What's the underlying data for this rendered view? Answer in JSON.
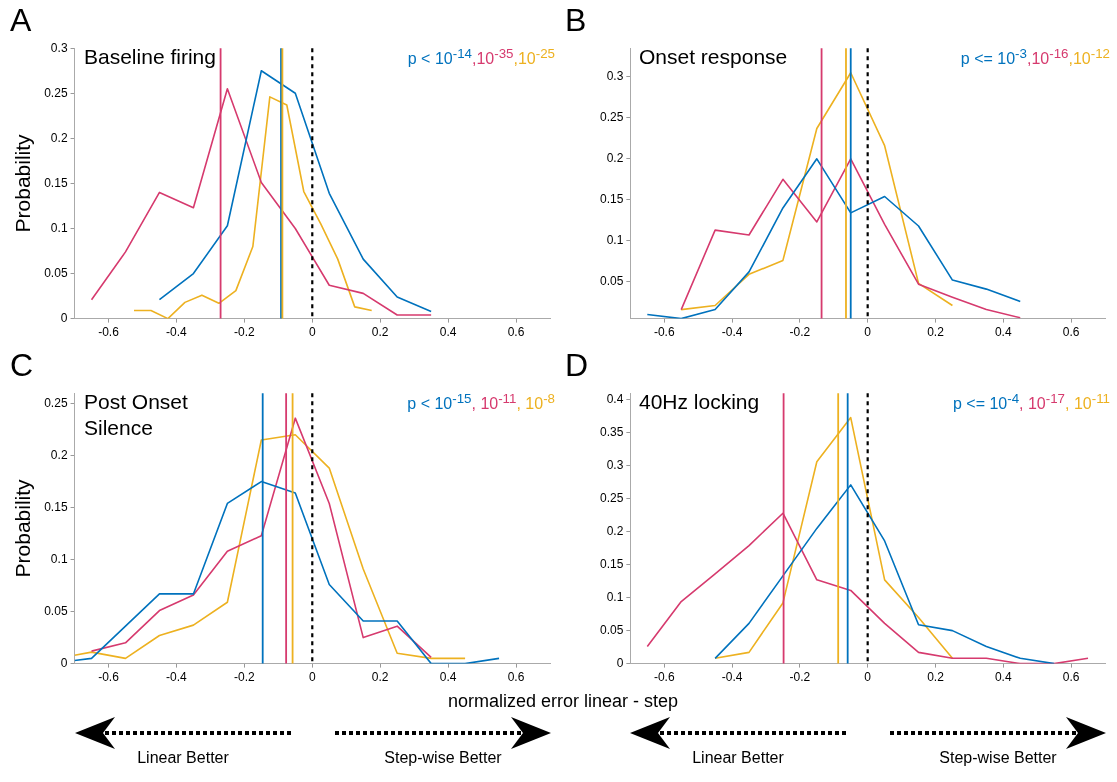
{
  "chart_data": [
    {
      "type": "line",
      "title": "A",
      "subtitle": "Baseline firing",
      "ylabel": "Probability",
      "xlim": [
        -0.7,
        0.7
      ],
      "xticks": [
        -0.6,
        -0.4,
        -0.2,
        0,
        0.2,
        0.4,
        0.6
      ],
      "ylim": [
        0,
        0.3
      ],
      "yticks": [
        0,
        0.05,
        0.1,
        0.15,
        0.2,
        0.25,
        0.3
      ],
      "marker": "none",
      "annotations": [
        "p < 10$^{-14}$",
        ",10$^{-35}$",
        ",10$^{-25}$"
      ],
      "ref_lines": [
        {
          "axis": "x",
          "value": -0.27,
          "color": "#d63a6e"
        },
        {
          "axis": "x",
          "value": -0.092,
          "color": "#0072bd"
        },
        {
          "axis": "x",
          "value": -0.088,
          "color": "#edb120"
        },
        {
          "axis": "x",
          "value": 0,
          "color": "#000000",
          "line_style": "dashed"
        }
      ],
      "series": [
        {
          "color": "#0072bd",
          "x": [
            -0.45,
            -0.35,
            -0.25,
            -0.15,
            -0.05,
            0.05,
            0.15,
            0.25,
            0.35
          ],
          "values": [
            0.021,
            0.05,
            0.103,
            0.275,
            0.25,
            0.139,
            0.066,
            0.024,
            0.008
          ]
        },
        {
          "color": "#d63a6e",
          "x": [
            -0.65,
            -0.55,
            -0.45,
            -0.35,
            -0.25,
            -0.15,
            -0.05,
            0.05,
            0.15,
            0.25,
            0.35
          ],
          "values": [
            0.021,
            0.074,
            0.14,
            0.123,
            0.255,
            0.151,
            0.1,
            0.037,
            0.028,
            0.004,
            0.004
          ]
        },
        {
          "color": "#edb120",
          "x": [
            -0.525,
            -0.475,
            -0.425,
            -0.375,
            -0.325,
            -0.275,
            -0.225,
            -0.175,
            -0.125,
            -0.075,
            -0.025,
            0.025,
            0.075,
            0.125,
            0.175
          ],
          "values": [
            0.009,
            0.009,
            0,
            0.018,
            0.026,
            0.017,
            0.031,
            0.08,
            0.246,
            0.237,
            0.141,
            0.105,
            0.066,
            0.013,
            0.009
          ]
        }
      ]
    },
    {
      "type": "line",
      "title": "B",
      "subtitle": "Onset response",
      "xlim": [
        -0.7,
        0.7
      ],
      "xticks": [
        -0.6,
        -0.4,
        -0.2,
        0,
        0.2,
        0.4,
        0.6
      ],
      "ylim": [
        0.005,
        0.335
      ],
      "yticks": [
        0.05,
        0.1,
        0.15,
        0.2,
        0.25,
        0.3
      ],
      "marker": "none",
      "annotations": [
        "p <= 10$^{-3}$",
        ",10$^{-16}$",
        ",10$^{-12}$"
      ],
      "ref_lines": [
        {
          "axis": "x",
          "value": -0.136,
          "color": "#d63a6e"
        },
        {
          "axis": "x",
          "value": -0.064,
          "color": "#edb120"
        },
        {
          "axis": "x",
          "value": -0.05,
          "color": "#0072bd"
        },
        {
          "axis": "x",
          "value": 0,
          "color": "#000000",
          "line_style": "dashed"
        }
      ],
      "series": [
        {
          "color": "#0072bd",
          "x": [
            -0.65,
            -0.55,
            -0.45,
            -0.35,
            -0.25,
            -0.15,
            -0.05,
            0.05,
            0.15,
            0.25,
            0.35,
            0.45
          ],
          "values": [
            0.01,
            0.005,
            0.016,
            0.062,
            0.14,
            0.2,
            0.134,
            0.154,
            0.118,
            0.052,
            0.041,
            0.026
          ]
        },
        {
          "color": "#d63a6e",
          "x": [
            -0.55,
            -0.45,
            -0.35,
            -0.25,
            -0.15,
            -0.05,
            0.05,
            0.15,
            0.25,
            0.35,
            0.45
          ],
          "values": [
            0.016,
            0.113,
            0.107,
            0.175,
            0.123,
            0.2,
            0.12,
            0.047,
            0.031,
            0.016,
            0.006
          ]
        },
        {
          "color": "#edb120",
          "x": [
            -0.55,
            -0.45,
            -0.35,
            -0.25,
            -0.15,
            -0.05,
            0.05,
            0.15,
            0.25
          ],
          "values": [
            0.016,
            0.021,
            0.059,
            0.076,
            0.237,
            0.305,
            0.216,
            0.048,
            0.021
          ]
        }
      ]
    },
    {
      "type": "line",
      "title": "C",
      "subtitle": "Post Onset Silence",
      "ylabel": "Probability",
      "xlabel": "normalized error linear - step",
      "xlim": [
        -0.7,
        0.7
      ],
      "xticks": [
        -0.6,
        -0.4,
        -0.2,
        0,
        0.2,
        0.4,
        0.6
      ],
      "ylim": [
        0,
        0.26
      ],
      "yticks": [
        0,
        0.05,
        0.1,
        0.15,
        0.2,
        0.25
      ],
      "marker": "none",
      "annotations": [
        "p < 10$^{-15}$",
        ", 10$^{-11}$",
        ", 10$^{-8}$",
        "Linear Better",
        "Step-wise Better"
      ],
      "ref_lines": [
        {
          "axis": "x",
          "value": -0.146,
          "color": "#0072bd"
        },
        {
          "axis": "x",
          "value": -0.077,
          "color": "#d63a6e"
        },
        {
          "axis": "x",
          "value": -0.058,
          "color": "#edb120"
        },
        {
          "axis": "x",
          "value": 0,
          "color": "#000000",
          "line_style": "dashed"
        }
      ],
      "series": [
        {
          "color": "#0072bd",
          "x": [
            -0.7,
            -0.65,
            -0.55,
            -0.45,
            -0.35,
            -0.25,
            -0.15,
            -0.05,
            0.05,
            0.15,
            0.25,
            0.35,
            0.45,
            0.55
          ],
          "values": [
            0.003,
            0.005,
            0.036,
            0.067,
            0.067,
            0.154,
            0.175,
            0.164,
            0.076,
            0.041,
            0.041,
            0,
            0,
            0.005
          ]
        },
        {
          "color": "#d63a6e",
          "x": [
            -0.65,
            -0.55,
            -0.45,
            -0.35,
            -0.25,
            -0.15,
            -0.05,
            0.05,
            0.15,
            0.25,
            0.35
          ],
          "values": [
            0.012,
            0.02,
            0.051,
            0.066,
            0.108,
            0.123,
            0.236,
            0.154,
            0.025,
            0.036,
            0.006
          ]
        },
        {
          "color": "#edb120",
          "x": [
            -0.7,
            -0.65,
            -0.55,
            -0.45,
            -0.35,
            -0.25,
            -0.15,
            -0.05,
            0.05,
            0.15,
            0.25,
            0.35,
            0.45
          ],
          "values": [
            0.008,
            0.011,
            0.005,
            0.027,
            0.037,
            0.059,
            0.215,
            0.22,
            0.188,
            0.091,
            0.01,
            0.005,
            0.005
          ]
        }
      ]
    },
    {
      "type": "line",
      "title": "D",
      "subtitle": "40Hz locking",
      "xlim": [
        -0.7,
        0.7
      ],
      "xticks": [
        -0.6,
        -0.4,
        -0.2,
        0,
        0.2,
        0.4,
        0.6
      ],
      "ylim": [
        0,
        0.41
      ],
      "yticks": [
        0,
        0.05,
        0.1,
        0.15,
        0.2,
        0.25,
        0.3,
        0.35,
        0.4
      ],
      "marker": "none",
      "annotations": [
        "p <= 10$^{-4}$",
        ", 10$^{-17}$",
        ", 10$^{-11}$",
        "Linear Better",
        "Step-wise Better"
      ],
      "ref_lines": [
        {
          "axis": "x",
          "value": -0.248,
          "color": "#d63a6e"
        },
        {
          "axis": "x",
          "value": -0.087,
          "color": "#edb120"
        },
        {
          "axis": "x",
          "value": -0.059,
          "color": "#0072bd"
        },
        {
          "axis": "x",
          "value": 0,
          "color": "#000000",
          "line_style": "dashed"
        }
      ],
      "series": [
        {
          "color": "#0072bd",
          "x": [
            -0.45,
            -0.35,
            -0.25,
            -0.15,
            -0.05,
            0.05,
            0.15,
            0.25,
            0.35,
            0.45,
            0.55
          ],
          "values": [
            0.008,
            0.061,
            0.133,
            0.205,
            0.271,
            0.186,
            0.059,
            0.05,
            0.026,
            0.008,
            0
          ]
        },
        {
          "color": "#d63a6e",
          "x": [
            -0.65,
            -0.55,
            -0.45,
            -0.35,
            -0.25,
            -0.15,
            -0.05,
            0.05,
            0.15,
            0.25,
            0.35,
            0.45,
            0.55,
            0.65
          ],
          "values": [
            0.026,
            0.094,
            0.136,
            0.179,
            0.228,
            0.127,
            0.111,
            0.061,
            0.017,
            0.008,
            0.008,
            0,
            0,
            0.008
          ]
        },
        {
          "color": "#edb120",
          "x": [
            -0.45,
            -0.35,
            -0.25,
            -0.15,
            -0.05,
            0.05,
            0.15,
            0.25
          ],
          "values": [
            0.008,
            0.017,
            0.092,
            0.306,
            0.373,
            0.127,
            0.07,
            0.008
          ]
        }
      ]
    }
  ]
}
